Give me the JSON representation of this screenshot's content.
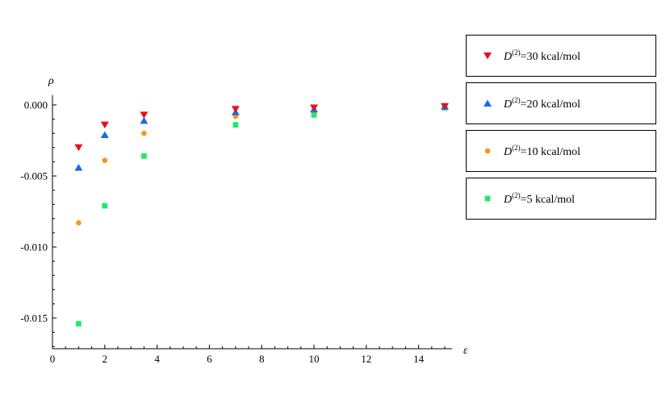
{
  "chart_data": {
    "type": "scatter",
    "title": "",
    "xlabel": "ε",
    "ylabel": "ρ",
    "xlim": [
      0,
      15.5
    ],
    "ylim": [
      -0.017,
      0.0005
    ],
    "x_ticks": [
      0,
      2,
      4,
      6,
      8,
      10,
      12,
      14
    ],
    "y_ticks": [
      0.0,
      -0.005,
      -0.01,
      -0.015
    ],
    "x_tick_labels": [
      "0",
      "2",
      "4",
      "6",
      "8",
      "10",
      "12",
      "14"
    ],
    "y_tick_labels": [
      "0.000",
      "-0.005",
      "-0.010",
      "-0.015"
    ],
    "grid": false,
    "legend_position": "right",
    "series": [
      {
        "name": "D(2)=30 kcal/mol",
        "label_main": "D",
        "label_sup": "(2)",
        "label_rest": "=30 kcal/mol",
        "marker": "triangle-down",
        "color": "#e8101a",
        "x": [
          1,
          2,
          3.5,
          7,
          10,
          15
        ],
        "y": [
          -0.003,
          -0.0014,
          -0.0007,
          -0.0003,
          -0.0002,
          -0.0001
        ]
      },
      {
        "name": "D(2)=20 kcal/mol",
        "label_main": "D",
        "label_sup": "(2)",
        "label_rest": "=20 kcal/mol",
        "marker": "triangle-up",
        "color": "#1a6be8",
        "x": [
          1,
          2,
          3.5,
          7,
          10,
          15
        ],
        "y": [
          -0.0044,
          -0.0021,
          -0.0011,
          -0.0005,
          -0.0003,
          -0.0001
        ]
      },
      {
        "name": "D(2)=10 kcal/mol",
        "label_main": "D",
        "label_sup": "(2)",
        "label_rest": "=10 kcal/mol",
        "marker": "circle",
        "color": "#f5961e",
        "x": [
          1,
          2,
          3.5,
          7,
          10,
          15
        ],
        "y": [
          -0.0083,
          -0.0039,
          -0.002,
          -0.0008,
          -0.0004,
          -0.0001
        ]
      },
      {
        "name": "D(2)=5 kcal/mol",
        "label_main": "D",
        "label_sup": "(2)",
        "label_rest": "=5 kcal/mol",
        "marker": "square",
        "color": "#24e86a",
        "x": [
          1,
          2,
          3.5,
          7,
          10,
          15
        ],
        "y": [
          -0.0154,
          -0.0071,
          -0.0036,
          -0.0014,
          -0.0007,
          -0.0002
        ]
      }
    ]
  }
}
